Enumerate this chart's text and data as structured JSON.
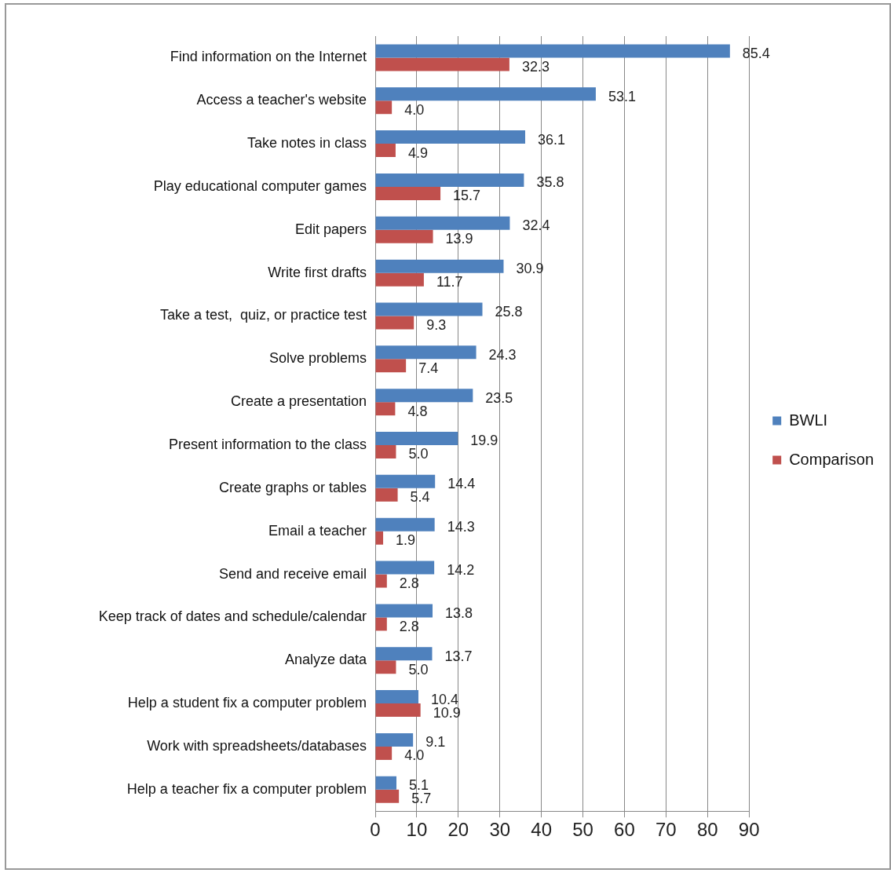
{
  "chart_data": {
    "type": "bar",
    "orientation": "horizontal",
    "categories": [
      "Find information on the Internet",
      "Access a teacher's website",
      "Take notes in class",
      "Play educational computer games",
      "Edit papers",
      "Write first drafts",
      "Take a test,  quiz, or practice test",
      "Solve problems",
      "Create a presentation",
      "Present information to the class",
      "Create graphs or tables",
      "Email a teacher",
      "Send and receive email",
      "Keep track of dates and schedule/calendar",
      "Analyze data",
      "Help a student fix a computer problem",
      "Work with spreadsheets/databases",
      "Help a teacher fix a computer problem"
    ],
    "series": [
      {
        "name": "BWLI",
        "color": "#4f81bd",
        "values": [
          85.4,
          53.1,
          36.1,
          35.8,
          32.4,
          30.9,
          25.8,
          24.3,
          23.5,
          19.9,
          14.4,
          14.3,
          14.2,
          13.8,
          13.7,
          10.4,
          9.1,
          5.1
        ],
        "value_labels": [
          "85.4",
          "53.1",
          "36.1",
          "35.8",
          "32.4",
          "30.9",
          "25.8",
          "24.3",
          "23.5",
          "19.9",
          "14.4",
          "14.3",
          "14.2",
          "13.8",
          "13.7",
          "10.4",
          "9.1",
          "5.1"
        ]
      },
      {
        "name": "Comparison",
        "color": "#c0504d",
        "values": [
          32.3,
          4.0,
          4.9,
          15.7,
          13.9,
          11.7,
          9.3,
          7.4,
          4.8,
          5.0,
          5.4,
          1.9,
          2.8,
          2.8,
          5.0,
          10.9,
          4.0,
          5.7
        ],
        "value_labels": [
          "32.3",
          "4.0",
          "4.9",
          "15.7",
          "13.9",
          "11.7",
          "9.3",
          "7.4",
          "4.8",
          "5.0",
          "5.4",
          "1.9",
          "2.8",
          "2.8",
          "5.0",
          "10.9",
          "4.0",
          "5.7"
        ]
      }
    ],
    "xlim": [
      0,
      90
    ],
    "xticks": [
      0,
      10,
      20,
      30,
      40,
      50,
      60,
      70,
      80,
      90
    ],
    "grid": "x",
    "legend": "right"
  }
}
